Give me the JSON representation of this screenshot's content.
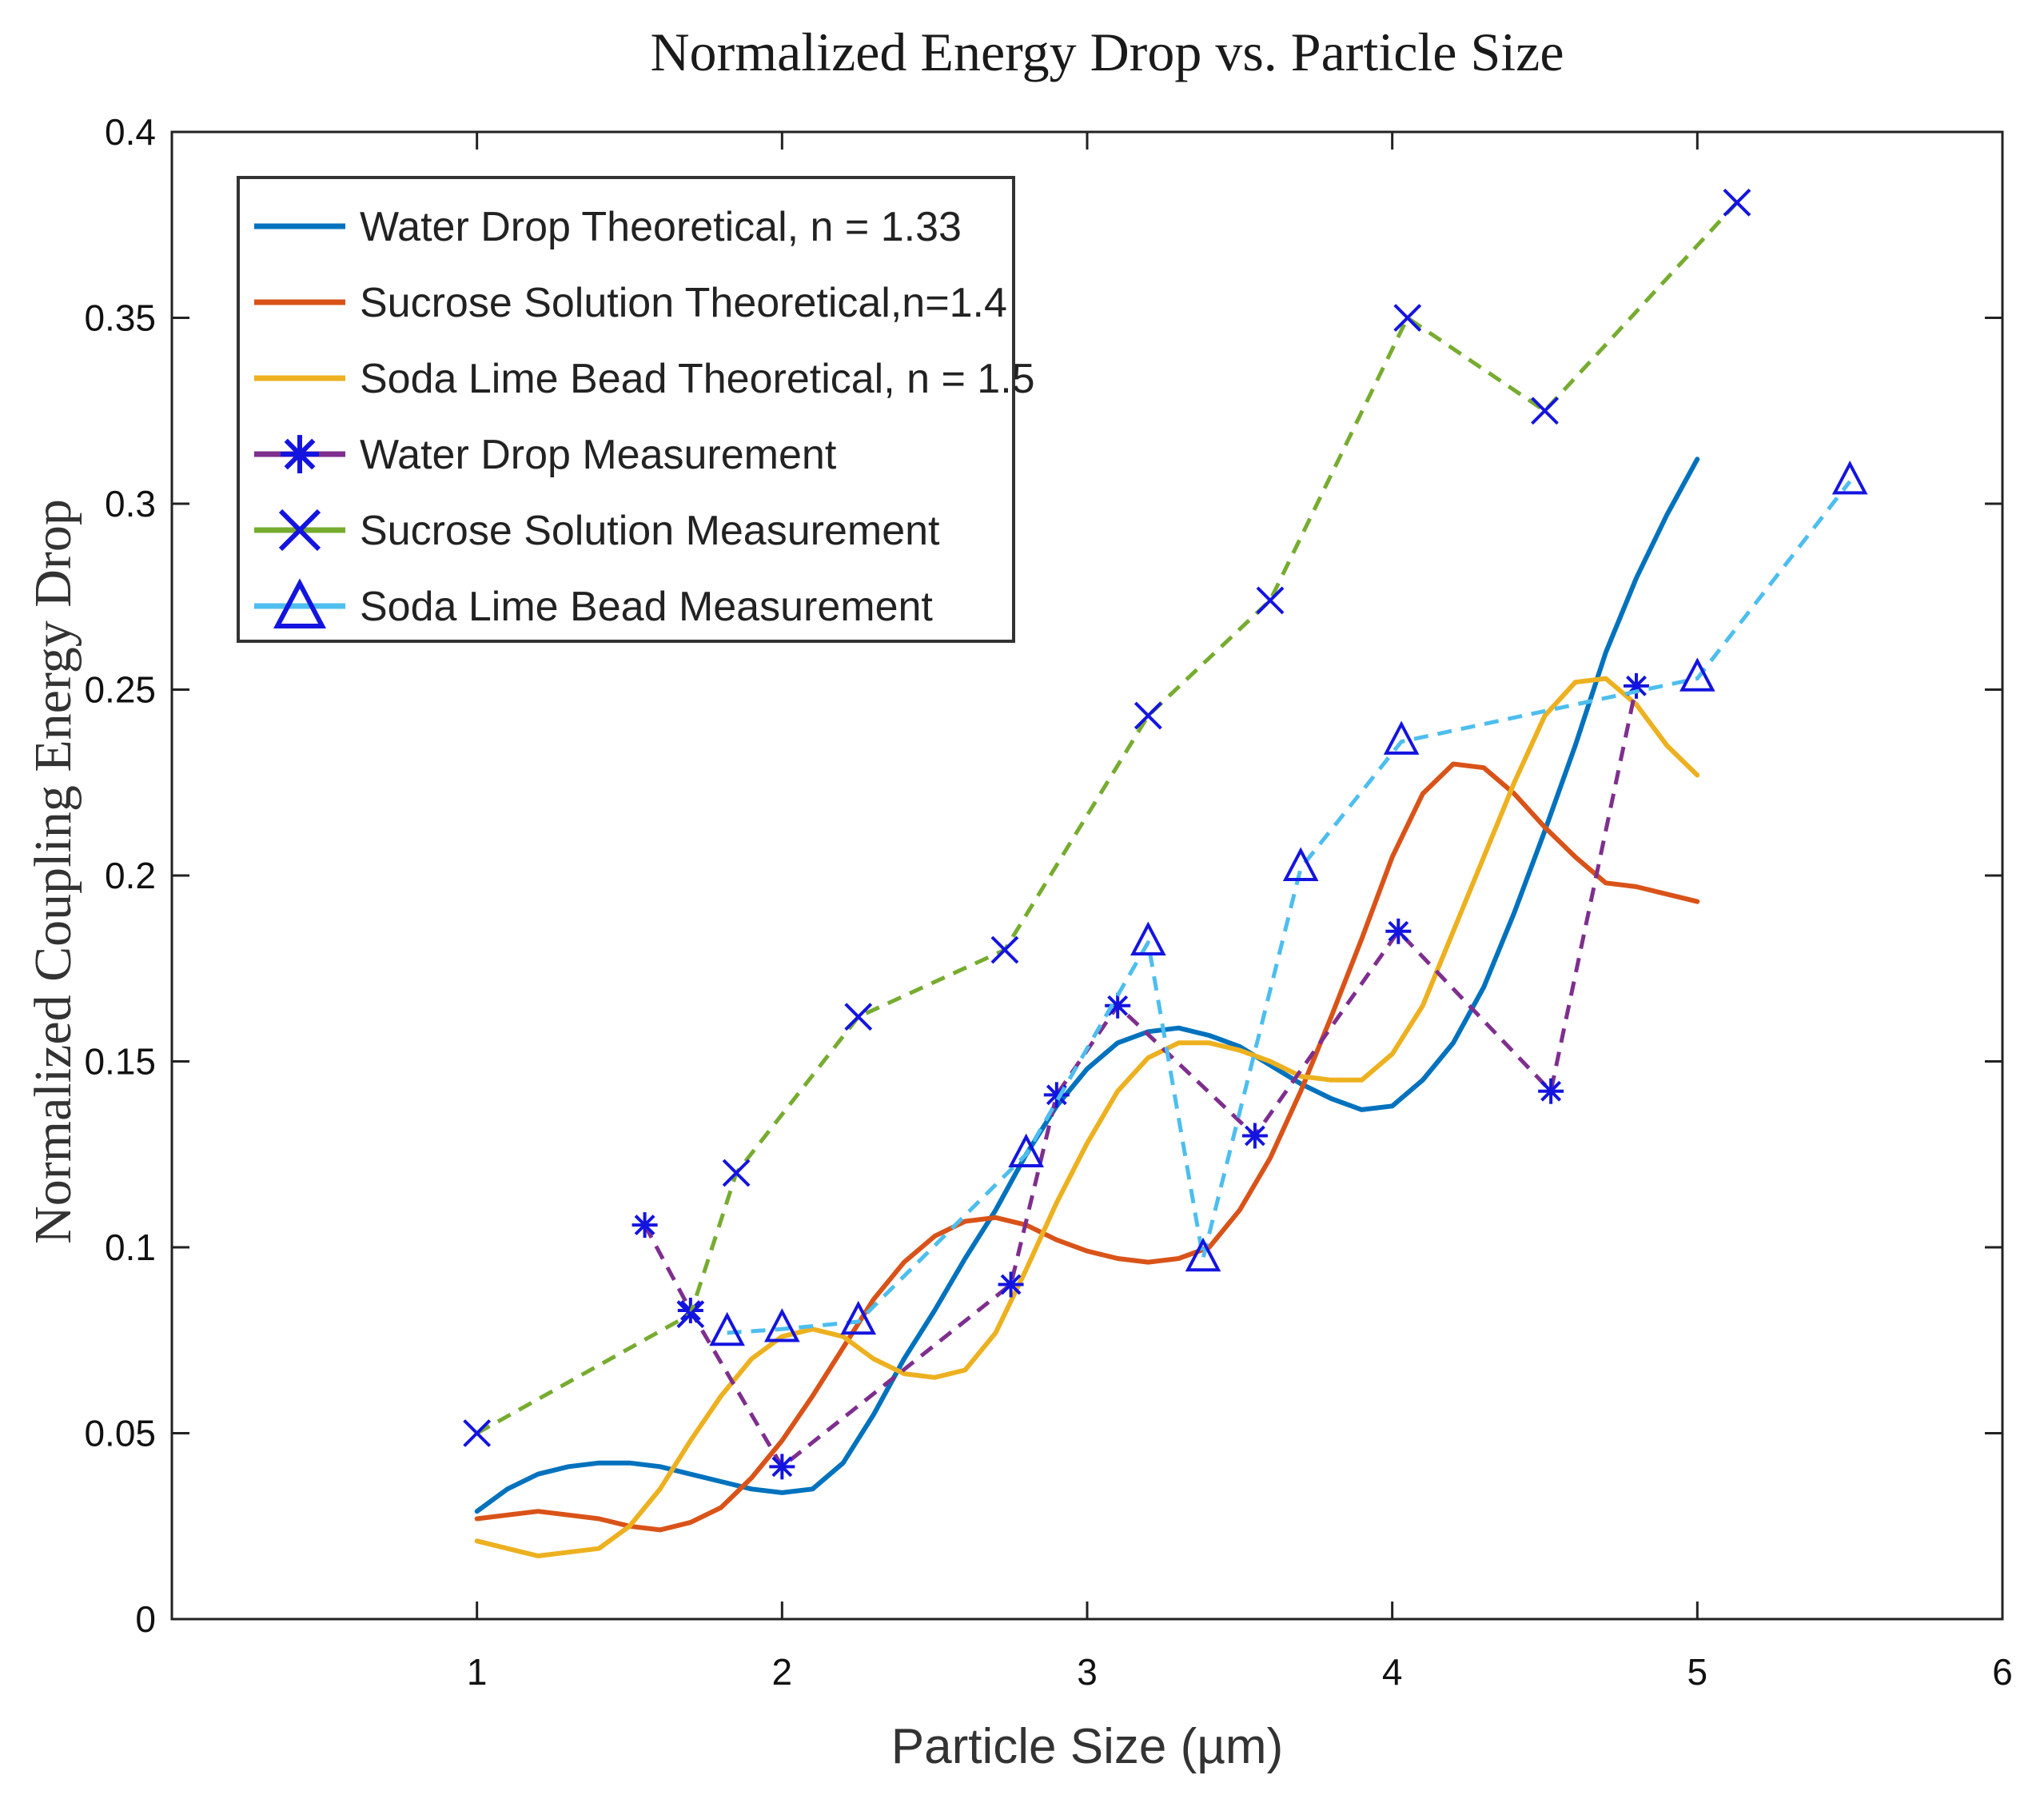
{
  "chart_data": {
    "type": "line",
    "title": "Normalized Energy Drop vs. Particle Size",
    "xlabel": "Particle Size (µm)",
    "ylabel": "Normalized Coupling Energy Drop",
    "xlim": [
      0,
      6
    ],
    "ylim": [
      0,
      0.4
    ],
    "xticks": [
      1,
      2,
      3,
      4,
      5,
      6
    ],
    "xtick_labels": [
      "1",
      "2",
      "3",
      "4",
      "5",
      "6"
    ],
    "yticks": [
      0,
      0.05,
      0.1,
      0.15,
      0.2,
      0.25,
      0.3,
      0.35,
      0.4
    ],
    "ytick_labels": [
      "0",
      "0.05",
      "0.1",
      "0.15",
      "0.2",
      "0.25",
      "0.3",
      "0.35",
      "0.4"
    ],
    "grid": false,
    "legend_position": "top-left",
    "series": [
      {
        "name": "Water Drop Theoretical, n = 1.33",
        "style": "solid",
        "marker": "none",
        "color": "#0072BD",
        "x": [
          1.0,
          1.1,
          1.2,
          1.3,
          1.4,
          1.5,
          1.6,
          1.7,
          1.8,
          1.9,
          2.0,
          2.1,
          2.2,
          2.3,
          2.4,
          2.5,
          2.6,
          2.7,
          2.8,
          2.9,
          3.0,
          3.1,
          3.2,
          3.3,
          3.4,
          3.5,
          3.6,
          3.7,
          3.8,
          3.9,
          4.0,
          4.1,
          4.2,
          4.3,
          4.4,
          4.5,
          4.6,
          4.7,
          4.8,
          4.9,
          5.0
        ],
        "y": [
          0.029,
          0.035,
          0.039,
          0.041,
          0.042,
          0.042,
          0.041,
          0.039,
          0.037,
          0.035,
          0.034,
          0.035,
          0.042,
          0.055,
          0.07,
          0.083,
          0.097,
          0.11,
          0.125,
          0.138,
          0.148,
          0.155,
          0.158,
          0.159,
          0.157,
          0.154,
          0.149,
          0.144,
          0.14,
          0.137,
          0.138,
          0.145,
          0.155,
          0.17,
          0.19,
          0.212,
          0.235,
          0.26,
          0.28,
          0.297,
          0.312
        ]
      },
      {
        "name": "Sucrose Solution Theoretical,n=1.4",
        "style": "solid",
        "marker": "none",
        "color": "#D95319",
        "x": [
          1.0,
          1.1,
          1.2,
          1.3,
          1.4,
          1.5,
          1.6,
          1.7,
          1.8,
          1.9,
          2.0,
          2.1,
          2.2,
          2.3,
          2.4,
          2.5,
          2.6,
          2.7,
          2.8,
          2.9,
          3.0,
          3.1,
          3.2,
          3.3,
          3.4,
          3.5,
          3.6,
          3.7,
          3.8,
          3.9,
          4.0,
          4.1,
          4.2,
          4.3,
          4.4,
          4.5,
          4.6,
          4.7,
          4.8,
          4.9,
          5.0
        ],
        "y": [
          0.027,
          0.028,
          0.029,
          0.028,
          0.027,
          0.025,
          0.024,
          0.026,
          0.03,
          0.038,
          0.048,
          0.06,
          0.073,
          0.086,
          0.096,
          0.103,
          0.107,
          0.108,
          0.106,
          0.102,
          0.099,
          0.097,
          0.096,
          0.097,
          0.1,
          0.11,
          0.124,
          0.142,
          0.162,
          0.183,
          0.205,
          0.222,
          0.23,
          0.229,
          0.222,
          0.213,
          0.205,
          0.198,
          0.197,
          0.195,
          0.193
        ]
      },
      {
        "name": "Soda Lime Bead Theoretical, n = 1.5",
        "style": "solid",
        "marker": "none",
        "color": "#EDB120",
        "x": [
          1.0,
          1.1,
          1.2,
          1.3,
          1.4,
          1.5,
          1.6,
          1.7,
          1.8,
          1.9,
          2.0,
          2.1,
          2.2,
          2.3,
          2.4,
          2.5,
          2.6,
          2.7,
          2.8,
          2.9,
          3.0,
          3.1,
          3.2,
          3.3,
          3.4,
          3.5,
          3.6,
          3.7,
          3.8,
          3.9,
          4.0,
          4.1,
          4.2,
          4.3,
          4.4,
          4.5,
          4.6,
          4.7,
          4.8,
          4.9,
          5.0
        ],
        "y": [
          0.021,
          0.019,
          0.017,
          0.018,
          0.019,
          0.025,
          0.035,
          0.048,
          0.06,
          0.07,
          0.076,
          0.078,
          0.076,
          0.07,
          0.066,
          0.065,
          0.067,
          0.077,
          0.094,
          0.112,
          0.128,
          0.142,
          0.151,
          0.155,
          0.155,
          0.153,
          0.15,
          0.146,
          0.145,
          0.145,
          0.152,
          0.165,
          0.185,
          0.205,
          0.225,
          0.243,
          0.252,
          0.253,
          0.246,
          0.235,
          0.227
        ]
      },
      {
        "name": "Water Drop Measurement",
        "style": "dashed",
        "marker": "asterisk",
        "line_color": "#7E2F8E",
        "marker_color": "#1414E0",
        "x": [
          1.55,
          1.7,
          2.0,
          2.75,
          2.9,
          3.1,
          3.55,
          4.02,
          4.52,
          4.8
        ],
        "y": [
          0.106,
          0.083,
          0.041,
          0.09,
          0.141,
          0.165,
          0.13,
          0.185,
          0.142,
          0.251
        ]
      },
      {
        "name": "Sucrose Solution Measurement",
        "style": "dashed",
        "marker": "x",
        "line_color": "#77AC30",
        "marker_color": "#1414E0",
        "x": [
          1.0,
          1.7,
          1.85,
          2.25,
          2.73,
          3.2,
          3.6,
          4.05,
          4.5,
          5.13
        ],
        "y": [
          0.05,
          0.082,
          0.12,
          0.162,
          0.18,
          0.243,
          0.274,
          0.35,
          0.325,
          0.381
        ]
      },
      {
        "name": "Soda Lime Bead Measurement",
        "style": "dashed",
        "marker": "triangle",
        "line_color": "#4DBEEE",
        "marker_color": "#1414E0",
        "x": [
          1.82,
          2.0,
          2.25,
          2.8,
          3.2,
          3.38,
          3.7,
          4.03,
          5.0,
          5.5
        ],
        "y": [
          0.077,
          0.078,
          0.08,
          0.125,
          0.182,
          0.097,
          0.202,
          0.236,
          0.253,
          0.306
        ]
      }
    ]
  }
}
